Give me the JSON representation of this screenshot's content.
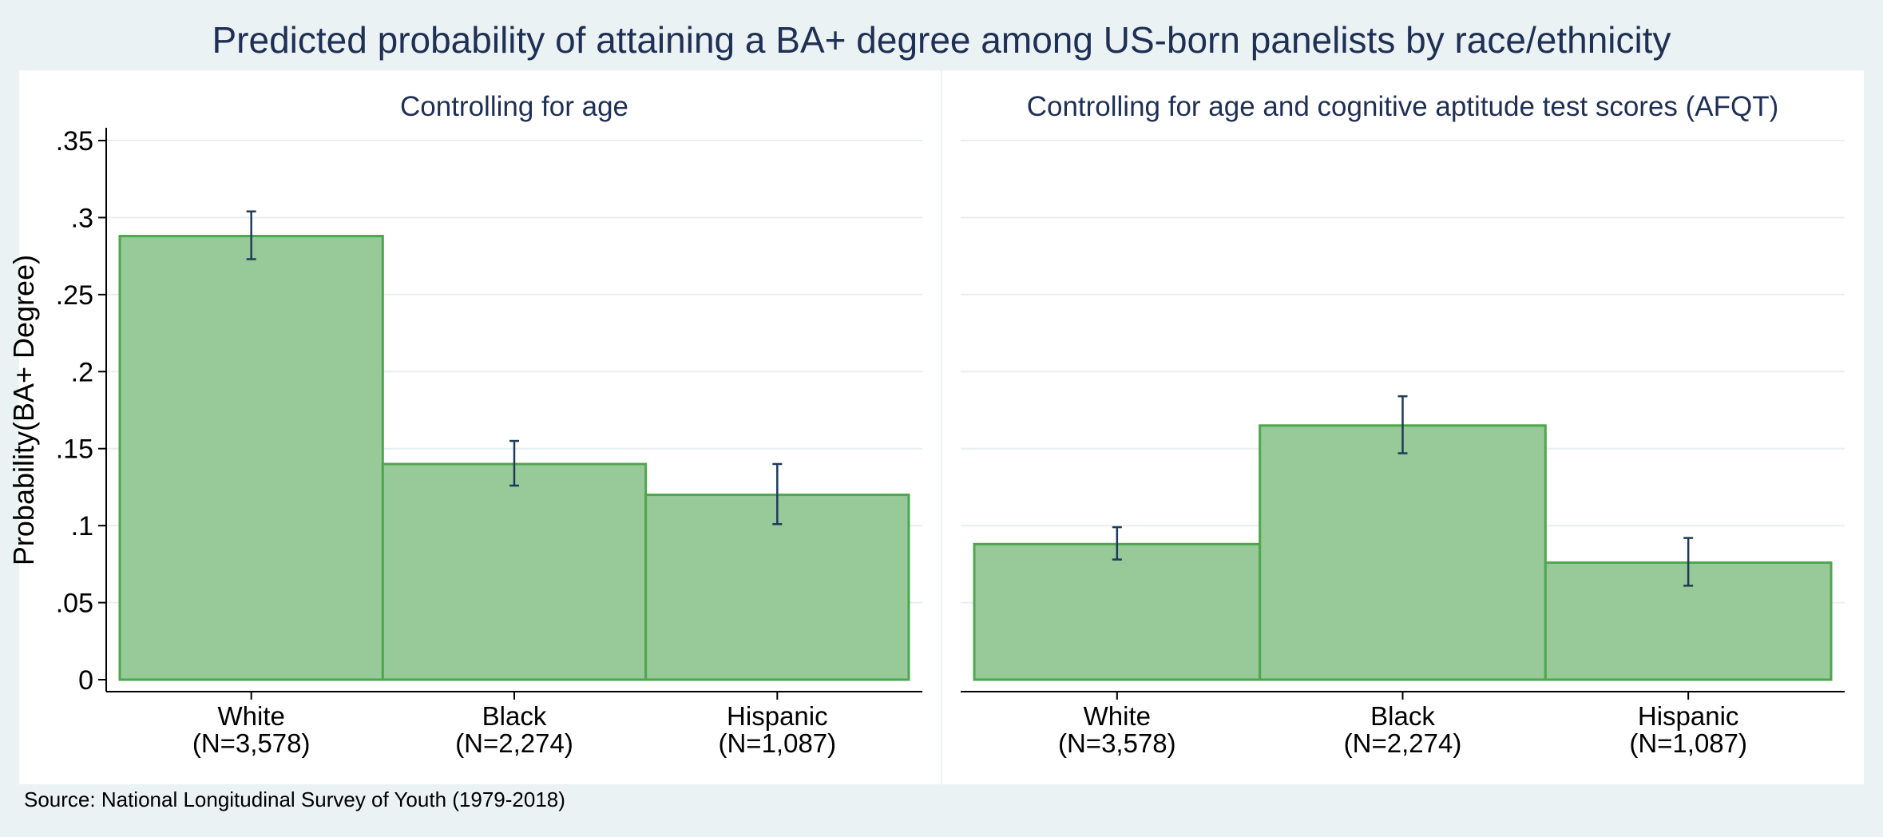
{
  "title": "Predicted probability of attaining a BA+ degree among US-born panelists by race/ethnicity",
  "source": "Source: National Longitudinal Survey of Youth (1979-2018)",
  "colors": {
    "background": "#eaf2f3",
    "panel": "#ffffff",
    "bar_fill": "#98c998",
    "bar_stroke": "#4ea64e",
    "error_bar": "#1f3b5a",
    "title": "#1f2f55",
    "gridline": "#e9eef0"
  },
  "chart_data": [
    {
      "type": "bar",
      "title": "Controlling for age",
      "ylabel": "Probability(BA+ Degree)",
      "ylim": [
        0,
        0.35
      ],
      "yticks": [
        0,
        0.05,
        0.1,
        0.15,
        0.2,
        0.25,
        0.3,
        0.35
      ],
      "ytick_labels": [
        "0",
        ".05",
        ".1",
        ".15",
        ".2",
        ".25",
        ".3",
        ".35"
      ],
      "categories": [
        "White",
        "Black",
        "Hispanic"
      ],
      "category_counts": [
        "(N=3,578)",
        "(N=2,274)",
        "(N=1,087)"
      ],
      "values": [
        0.288,
        0.14,
        0.12
      ],
      "ci_low": [
        0.273,
        0.126,
        0.101
      ],
      "ci_high": [
        0.304,
        0.155,
        0.14
      ],
      "grid": true
    },
    {
      "type": "bar",
      "title": "Controlling for age and cognitive aptitude test scores (AFQT)",
      "ylabel": "",
      "ylim": [
        0,
        0.35
      ],
      "yticks": [
        0,
        0.05,
        0.1,
        0.15,
        0.2,
        0.25,
        0.3,
        0.35
      ],
      "ytick_labels": [],
      "categories": [
        "White",
        "Black",
        "Hispanic"
      ],
      "category_counts": [
        "(N=3,578)",
        "(N=2,274)",
        "(N=1,087)"
      ],
      "values": [
        0.088,
        0.165,
        0.076
      ],
      "ci_low": [
        0.078,
        0.147,
        0.061
      ],
      "ci_high": [
        0.099,
        0.184,
        0.092
      ],
      "grid": true
    }
  ]
}
